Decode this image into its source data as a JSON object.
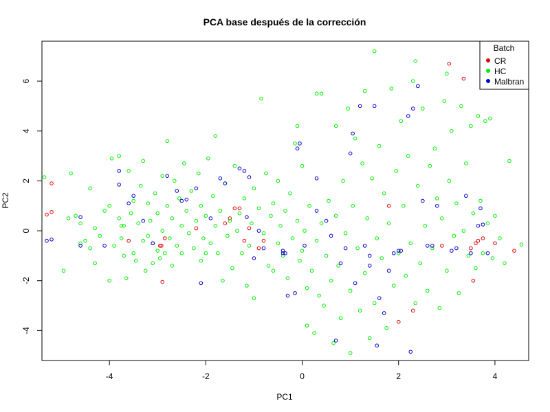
{
  "chart_data": {
    "type": "scatter",
    "title": "PCA base después de la corrección",
    "xlabel": "PC1",
    "ylabel": "PC2",
    "xlim": [
      -5.4,
      4.7
    ],
    "ylim": [
      -5.2,
      7.6
    ],
    "xticks": [
      -4,
      -2,
      0,
      2,
      4
    ],
    "yticks": [
      -4,
      -2,
      0,
      2,
      4,
      6
    ],
    "grid": false,
    "marker": "open-circle",
    "legend": {
      "title": "Batch",
      "position": "top-right"
    },
    "series": [
      {
        "name": "CR",
        "color": "#e00000",
        "points": [
          [
            -5.3,
            0.65
          ],
          [
            -5.2,
            0.75
          ],
          [
            -5.2,
            1.9
          ],
          [
            -3.6,
            -0.4
          ],
          [
            -3.1,
            -0.5
          ],
          [
            -2.95,
            -0.6
          ],
          [
            -2.92,
            -0.6
          ],
          [
            -2.9,
            -2.05
          ],
          [
            -2.85,
            -0.3
          ],
          [
            -2.2,
            0.1
          ],
          [
            -1.6,
            0.3
          ],
          [
            -1.5,
            0.5
          ],
          [
            -1.4,
            0.9
          ],
          [
            -1.3,
            0.9
          ],
          [
            -1.2,
            -0.4
          ],
          [
            -1.1,
            0.1
          ],
          [
            -0.9,
            -0.7
          ],
          [
            -0.8,
            -0.4
          ],
          [
            1.8,
            1.0
          ],
          [
            2.0,
            -3.65
          ],
          [
            2.3,
            -3.2
          ],
          [
            2.9,
            -0.6
          ],
          [
            3.05,
            6.7
          ],
          [
            3.35,
            6.1
          ],
          [
            3.5,
            -0.7
          ],
          [
            3.55,
            -2.0
          ],
          [
            3.6,
            -0.5
          ],
          [
            3.65,
            -0.4
          ],
          [
            3.75,
            -0.3
          ],
          [
            4.0,
            -0.5
          ],
          [
            4.4,
            -0.8
          ]
        ]
      },
      {
        "name": "HC",
        "color": "#00ee00",
        "points": [
          [
            -5.35,
            2.15
          ],
          [
            -4.95,
            -1.6
          ],
          [
            -4.85,
            0.5
          ],
          [
            -4.8,
            2.3
          ],
          [
            -4.7,
            0.6
          ],
          [
            -4.6,
            -0.5
          ],
          [
            -4.6,
            0.3
          ],
          [
            -4.5,
            -0.4
          ],
          [
            -4.4,
            -0.7
          ],
          [
            -4.4,
            1.7
          ],
          [
            -4.3,
            -1.3
          ],
          [
            -4.3,
            0.1
          ],
          [
            -4.2,
            -0.2
          ],
          [
            -4.1,
            0.8
          ],
          [
            -4.0,
            1.0
          ],
          [
            -4.0,
            -2.0
          ],
          [
            -3.95,
            2.9
          ],
          [
            -3.9,
            -0.6
          ],
          [
            -3.8,
            3.0
          ],
          [
            -3.8,
            0.5
          ],
          [
            -3.75,
            -0.3
          ],
          [
            -3.7,
            0.2
          ],
          [
            -3.7,
            -1.0
          ],
          [
            -3.65,
            -1.9
          ],
          [
            -3.6,
            2.4
          ],
          [
            -3.55,
            0.7
          ],
          [
            -3.5,
            -0.9
          ],
          [
            -3.5,
            1.2
          ],
          [
            -3.45,
            -1.2
          ],
          [
            -3.4,
            0.3
          ],
          [
            -3.35,
            1.8
          ],
          [
            -3.3,
            -0.4
          ],
          [
            -3.3,
            2.8
          ],
          [
            -3.25,
            -1.6
          ],
          [
            -3.2,
            1.1
          ],
          [
            -3.2,
            -0.2
          ],
          [
            -3.15,
            0.4
          ],
          [
            -3.1,
            -1.3
          ],
          [
            -3.05,
            1.5
          ],
          [
            -3.0,
            -0.8
          ],
          [
            -3.0,
            0.7
          ],
          [
            -2.95,
            -1.1
          ],
          [
            -2.9,
            2.2
          ],
          [
            -2.9,
            0.0
          ],
          [
            -2.85,
            -0.9
          ],
          [
            -2.8,
            1.0
          ],
          [
            -2.8,
            3.6
          ],
          [
            -2.75,
            -0.3
          ],
          [
            -2.7,
            -1.4
          ],
          [
            -2.7,
            0.5
          ],
          [
            -2.65,
            2.0
          ],
          [
            -2.6,
            -0.6
          ],
          [
            -2.55,
            1.3
          ],
          [
            -2.5,
            0.2
          ],
          [
            -2.5,
            -0.9
          ],
          [
            -2.45,
            2.7
          ],
          [
            -2.4,
            0.8
          ],
          [
            -2.35,
            -0.1
          ],
          [
            -2.3,
            1.6
          ],
          [
            -2.25,
            -0.7
          ],
          [
            -2.2,
            0.4
          ],
          [
            -2.15,
            2.3
          ],
          [
            -2.1,
            -1.2
          ],
          [
            -2.1,
            1.0
          ],
          [
            -2.05,
            -0.3
          ],
          [
            -2.0,
            0.6
          ],
          [
            -1.95,
            2.9
          ],
          [
            -1.9,
            -0.5
          ],
          [
            -1.85,
            1.4
          ],
          [
            -1.8,
            3.8
          ],
          [
            -1.8,
            0.2
          ],
          [
            -1.75,
            -0.9
          ],
          [
            -1.7,
            0.8
          ],
          [
            -1.65,
            -2.0
          ],
          [
            -1.6,
            1.9
          ],
          [
            -1.55,
            -0.2
          ],
          [
            -1.5,
            0.4
          ],
          [
            -1.45,
            -1.5
          ],
          [
            -1.4,
            2.6
          ],
          [
            -1.35,
            0.0
          ],
          [
            -1.3,
            0.7
          ],
          [
            -1.25,
            -0.9
          ],
          [
            -1.2,
            1.3
          ],
          [
            -1.15,
            -2.2
          ],
          [
            -1.1,
            -0.6
          ],
          [
            -1.05,
            0.3
          ],
          [
            -1.0,
            1.7
          ],
          [
            -1.0,
            -2.7
          ],
          [
            -0.9,
            0.9
          ],
          [
            -0.85,
            5.3
          ],
          [
            -0.8,
            -0.1
          ],
          [
            -0.75,
            2.3
          ],
          [
            -0.7,
            -1.4
          ],
          [
            -0.65,
            0.6
          ],
          [
            -0.6,
            1.1
          ],
          [
            -0.5,
            -0.5
          ],
          [
            -0.5,
            2.0
          ],
          [
            -0.45,
            0.2
          ],
          [
            -0.4,
            -1.0
          ],
          [
            -0.35,
            0.8
          ],
          [
            -0.3,
            -1.9
          ],
          [
            -0.25,
            1.5
          ],
          [
            -0.2,
            -0.3
          ],
          [
            -0.15,
            3.5
          ],
          [
            -0.1,
            0.4
          ],
          [
            -0.1,
            4.2
          ],
          [
            -0.05,
            -1.2
          ],
          [
            0.0,
            2.6
          ],
          [
            0.0,
            -0.8
          ],
          [
            0.05,
            0.0
          ],
          [
            0.1,
            -2.3
          ],
          [
            0.1,
            -3.8
          ],
          [
            0.15,
            1.0
          ],
          [
            0.2,
            -1.6
          ],
          [
            0.25,
            -4.1
          ],
          [
            0.3,
            -0.4
          ],
          [
            0.3,
            5.5
          ],
          [
            0.35,
            -2.6
          ],
          [
            0.4,
            5.5
          ],
          [
            0.4,
            0.3
          ],
          [
            0.45,
            -3.0
          ],
          [
            0.5,
            -1.0
          ],
          [
            0.55,
            1.2
          ],
          [
            0.6,
            -2.0
          ],
          [
            0.65,
            -4.5
          ],
          [
            0.7,
            0.6
          ],
          [
            0.7,
            4.2
          ],
          [
            0.75,
            -1.4
          ],
          [
            0.8,
            -3.5
          ],
          [
            0.85,
            2.0
          ],
          [
            0.9,
            -0.1
          ],
          [
            0.95,
            4.9
          ],
          [
            1.0,
            -2.4
          ],
          [
            1.0,
            -4.9
          ],
          [
            1.05,
            1.0
          ],
          [
            1.1,
            3.7
          ],
          [
            1.15,
            -0.7
          ],
          [
            1.2,
            -3.2
          ],
          [
            1.25,
            2.7
          ],
          [
            1.3,
            5.6
          ],
          [
            1.3,
            -1.7
          ],
          [
            1.35,
            0.5
          ],
          [
            1.4,
            -4.3
          ],
          [
            1.45,
            2.1
          ],
          [
            1.5,
            -2.9
          ],
          [
            1.5,
            7.2
          ],
          [
            1.55,
            -0.3
          ],
          [
            1.6,
            3.4
          ],
          [
            1.65,
            -1.1
          ],
          [
            1.7,
            1.5
          ],
          [
            1.75,
            -3.9
          ],
          [
            1.8,
            0.3
          ],
          [
            1.85,
            5.7
          ],
          [
            1.9,
            -2.2
          ],
          [
            1.95,
            2.4
          ],
          [
            2.0,
            -0.9
          ],
          [
            2.05,
            4.4
          ],
          [
            2.1,
            1.0
          ],
          [
            2.15,
            -1.8
          ],
          [
            2.2,
            3.0
          ],
          [
            2.25,
            -0.5
          ],
          [
            2.3,
            6.0
          ],
          [
            2.35,
            6.8
          ],
          [
            2.35,
            -2.9
          ],
          [
            2.4,
            1.8
          ],
          [
            2.45,
            -1.3
          ],
          [
            2.5,
            4.9
          ],
          [
            2.55,
            0.2
          ],
          [
            2.6,
            -2.4
          ],
          [
            2.65,
            2.6
          ],
          [
            2.7,
            -0.7
          ],
          [
            2.75,
            3.3
          ],
          [
            2.8,
            1.3
          ],
          [
            2.85,
            -3.1
          ],
          [
            2.9,
            0.5
          ],
          [
            2.95,
            5.2
          ],
          [
            3.0,
            6.3
          ],
          [
            3.0,
            -1.6
          ],
          [
            3.05,
            2.0
          ],
          [
            3.1,
            4.0
          ],
          [
            3.15,
            -0.2
          ],
          [
            3.2,
            1.1
          ],
          [
            3.25,
            -2.5
          ],
          [
            3.3,
            5.0
          ],
          [
            3.35,
            0.0
          ],
          [
            3.4,
            2.7
          ],
          [
            3.45,
            -1.0
          ],
          [
            3.5,
            4.2
          ],
          [
            3.55,
            0.7
          ],
          [
            3.6,
            -1.5
          ],
          [
            3.65,
            4.6
          ],
          [
            3.7,
            1.2
          ],
          [
            3.75,
            -0.9
          ],
          [
            3.8,
            4.4
          ],
          [
            3.85,
            0.3
          ],
          [
            3.9,
            4.5
          ],
          [
            3.95,
            -1.1
          ],
          [
            4.0,
            0.6
          ],
          [
            4.1,
            -0.3
          ],
          [
            4.2,
            -1.3
          ],
          [
            4.3,
            2.8
          ],
          [
            4.55,
            -0.55
          ],
          [
            -3.75,
            0.2
          ],
          [
            -2.0,
            -0.9
          ],
          [
            -0.6,
            -1.6
          ]
        ]
      },
      {
        "name": "Malbran",
        "color": "#0000cc",
        "points": [
          [
            -5.3,
            -0.4
          ],
          [
            -5.2,
            -0.35
          ],
          [
            -4.6,
            0.55
          ],
          [
            -4.6,
            -0.6
          ],
          [
            -4.1,
            -0.6
          ],
          [
            -3.8,
            2.4
          ],
          [
            -3.8,
            1.85
          ],
          [
            -3.6,
            1.1
          ],
          [
            -3.5,
            1.4
          ],
          [
            -3.3,
            0.4
          ],
          [
            -3.1,
            -0.5
          ],
          [
            -2.8,
            2.2
          ],
          [
            -2.6,
            1.6
          ],
          [
            -2.5,
            1.2
          ],
          [
            -2.4,
            1.25
          ],
          [
            -2.2,
            1.7
          ],
          [
            -2.1,
            -2.1
          ],
          [
            -1.9,
            0.5
          ],
          [
            -1.7,
            2.1
          ],
          [
            -1.6,
            1.9
          ],
          [
            -1.3,
            2.5
          ],
          [
            -1.2,
            2.4
          ],
          [
            -1.15,
            0.55
          ],
          [
            -1.1,
            2.15
          ],
          [
            -1.0,
            -1.1
          ],
          [
            -0.9,
            0.0
          ],
          [
            -0.8,
            -0.7
          ],
          [
            -0.4,
            -0.8
          ],
          [
            -0.35,
            -0.9
          ],
          [
            -0.3,
            -2.6
          ],
          [
            -0.15,
            -2.5
          ],
          [
            -0.1,
            3.3
          ],
          [
            -0.05,
            3.5
          ],
          [
            0.05,
            -0.6
          ],
          [
            0.3,
            0.8
          ],
          [
            0.3,
            2.1
          ],
          [
            0.5,
            0.4
          ],
          [
            0.6,
            -0.2
          ],
          [
            0.7,
            -4.4
          ],
          [
            0.8,
            -1.3
          ],
          [
            0.9,
            -0.7
          ],
          [
            1.0,
            3.1
          ],
          [
            1.05,
            3.9
          ],
          [
            1.1,
            -2.1
          ],
          [
            1.2,
            5.0
          ],
          [
            1.3,
            -0.6
          ],
          [
            1.4,
            -1.4
          ],
          [
            1.5,
            5.0
          ],
          [
            1.55,
            -4.6
          ],
          [
            1.6,
            -2.7
          ],
          [
            1.7,
            -3.3
          ],
          [
            1.8,
            -1.6
          ],
          [
            1.9,
            -0.9
          ],
          [
            2.0,
            -0.8
          ],
          [
            2.2,
            4.6
          ],
          [
            2.25,
            -4.85
          ],
          [
            2.3,
            4.9
          ],
          [
            2.4,
            5.8
          ],
          [
            2.5,
            1.2
          ],
          [
            2.6,
            -0.6
          ],
          [
            2.7,
            -0.6
          ],
          [
            2.8,
            1.0
          ],
          [
            3.1,
            -0.8
          ],
          [
            3.2,
            -0.7
          ],
          [
            3.4,
            1.4
          ],
          [
            3.5,
            -0.9
          ],
          [
            3.65,
            0.2
          ],
          [
            3.7,
            0.9
          ],
          [
            3.75,
            0.25
          ],
          [
            3.85,
            -0.9
          ],
          [
            1.4,
            -1.0
          ],
          [
            2.05,
            -0.8
          ],
          [
            -0.4,
            -0.9
          ]
        ]
      }
    ]
  }
}
